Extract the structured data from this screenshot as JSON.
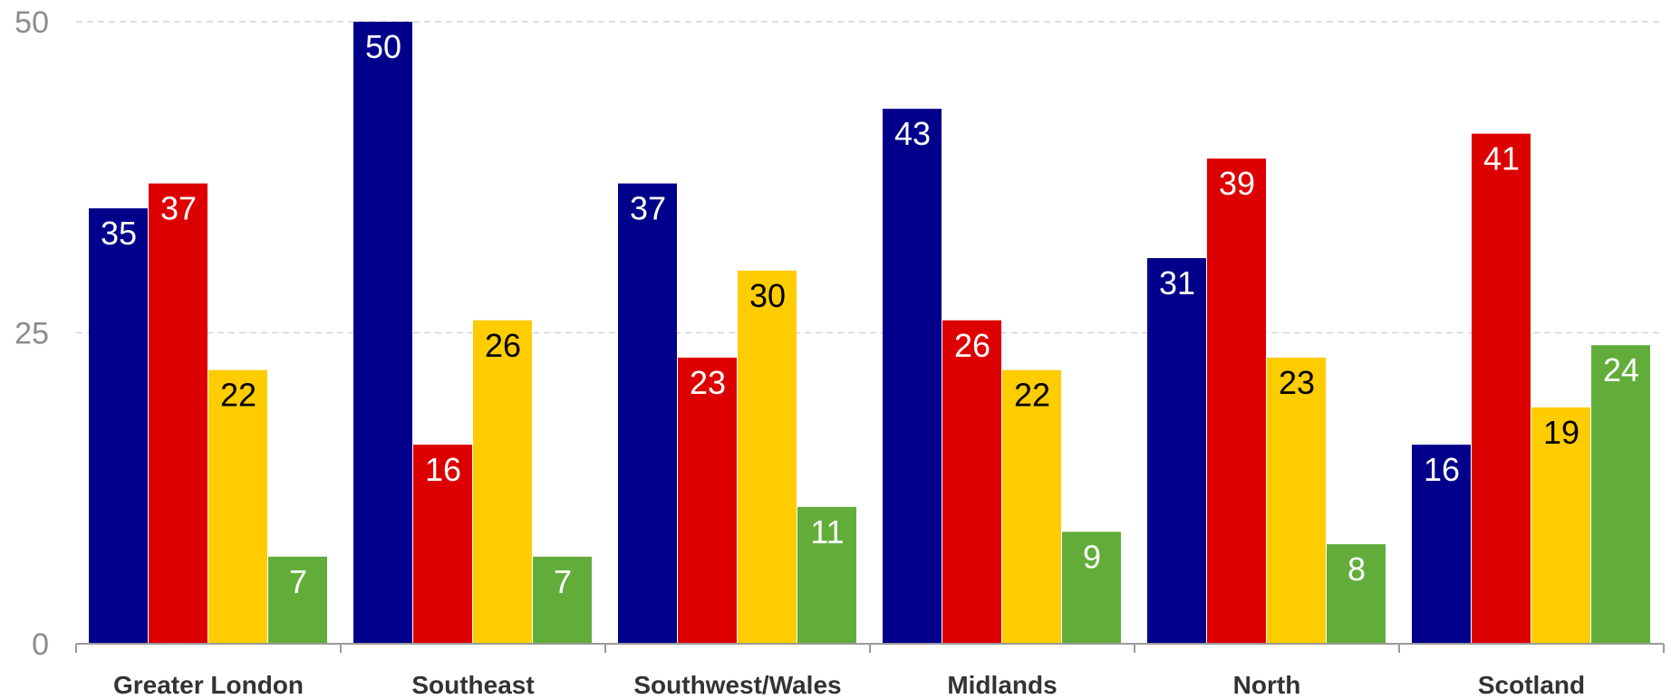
{
  "chart_data": {
    "type": "bar",
    "title": "",
    "xlabel": "",
    "ylabel": "",
    "categories": [
      "Greater London",
      "Southeast",
      "Southwest/Wales",
      "Midlands",
      "North",
      "Scotland"
    ],
    "series": [
      {
        "values": [
          35,
          50,
          37,
          43,
          31,
          16
        ],
        "color": "#00008b",
        "label_color": "#ffffff"
      },
      {
        "values": [
          37,
          16,
          23,
          26,
          39,
          41
        ],
        "color": "#dd0000",
        "label_color": "#ffffff"
      },
      {
        "values": [
          22,
          26,
          30,
          22,
          23,
          19
        ],
        "color": "#ffcc00",
        "label_color": "#000000"
      },
      {
        "values": [
          7,
          7,
          11,
          9,
          8,
          24
        ],
        "color": "#62ad3a",
        "label_color": "#ffffff"
      }
    ],
    "ylim": [
      0,
      50
    ],
    "yticks": [
      "0",
      "25",
      "50"
    ],
    "grid": true,
    "legend": "none"
  }
}
